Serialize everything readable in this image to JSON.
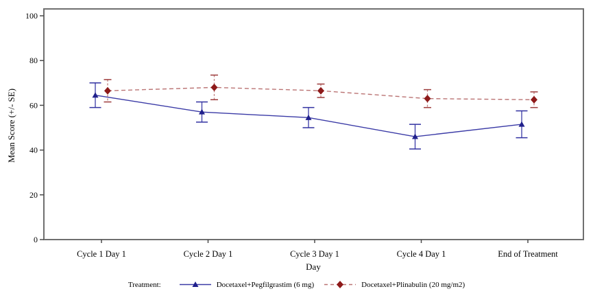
{
  "figure": {
    "background": "#ffffff",
    "frame_color": "#6f6f6f",
    "tick_color": "#4a4a4a",
    "text_color": "#000000"
  },
  "legend": {
    "label": "Treatment:"
  },
  "chart_data": {
    "type": "line",
    "xlabel": "Day",
    "ylabel": "Mean Score (+/- SE)",
    "categories": [
      "Cycle 1 Day 1",
      "Cycle 2 Day 1",
      "Cycle 3 Day 1",
      "Cycle 4 Day 1",
      "End of Treatment"
    ],
    "ylim": [
      0,
      100
    ],
    "yticks": [
      0,
      20,
      40,
      60,
      80,
      100
    ],
    "grid": false,
    "legend_position": "bottom",
    "error_bars": "+/- SE",
    "series": [
      {
        "name": "Docetaxel+Pegfilgrastim (6 mg)",
        "values": [
          64.5,
          57,
          54.5,
          46,
          51.5
        ],
        "se": [
          5.5,
          4.5,
          4.5,
          5.5,
          6
        ],
        "marker": "triangle",
        "line_style": "solid",
        "line_color": "#3a3aa6",
        "marker_color": "#20208c",
        "error_color": "#3a3aa6",
        "cap_color": "#3030a0"
      },
      {
        "name": "Docetaxel+Plinabulin (20 mg/m2)",
        "values": [
          66.5,
          68,
          66.5,
          63,
          62.5
        ],
        "se": [
          5,
          5.5,
          3,
          4,
          3.5
        ],
        "marker": "diamond",
        "line_style": "dashed",
        "line_color": "#ba7373",
        "marker_color": "#8e1a1a",
        "error_color": "#c08080",
        "cap_color": "#9c3a3a"
      }
    ]
  }
}
